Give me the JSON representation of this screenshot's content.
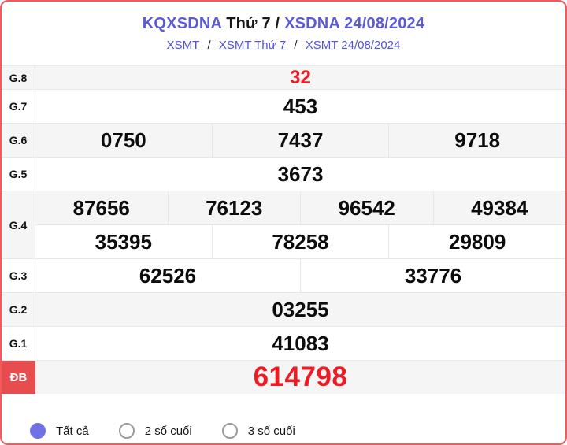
{
  "header": {
    "title_kq": "KQXSDNA",
    "title_mid": " Thứ 7 / ",
    "title_date": "XSDNA 24/08/2024",
    "separator": "/",
    "links": [
      "XSMT",
      "XSMT Thứ 7",
      "XSMT 24/08/2024"
    ]
  },
  "results": {
    "rows": [
      {
        "label": "G.8",
        "values": [
          "32"
        ]
      },
      {
        "label": "G.7",
        "values": [
          "453"
        ]
      },
      {
        "label": "G.6",
        "values": [
          "0750",
          "7437",
          "9718"
        ]
      },
      {
        "label": "G.5",
        "values": [
          "3673"
        ]
      },
      {
        "label": "G.4",
        "line1": [
          "87656",
          "76123",
          "96542",
          "49384"
        ],
        "line2": [
          "35395",
          "78258",
          "29809"
        ]
      },
      {
        "label": "G.3",
        "values": [
          "62526",
          "33776"
        ]
      },
      {
        "label": "G.2",
        "values": [
          "03255"
        ]
      },
      {
        "label": "G.1",
        "values": [
          "41083"
        ]
      },
      {
        "label": "ĐB",
        "values": [
          "614798"
        ]
      }
    ]
  },
  "filters": {
    "options": [
      {
        "label": "Tất cả",
        "selected": true
      },
      {
        "label": "2 số cuối",
        "selected": false
      },
      {
        "label": "3 số cuối",
        "selected": false
      }
    ]
  },
  "colors": {
    "page_border": "#f15b5b",
    "title_purple": "#5b5bd6",
    "link_blue": "#5252d8",
    "highlight_red": "#ed1c24",
    "db_badge_red": "#e74c4f",
    "row_gray": "#f5f5f6",
    "divider_gray": "#e7e7e9",
    "radio_selected_purple": "#6f71e5"
  }
}
